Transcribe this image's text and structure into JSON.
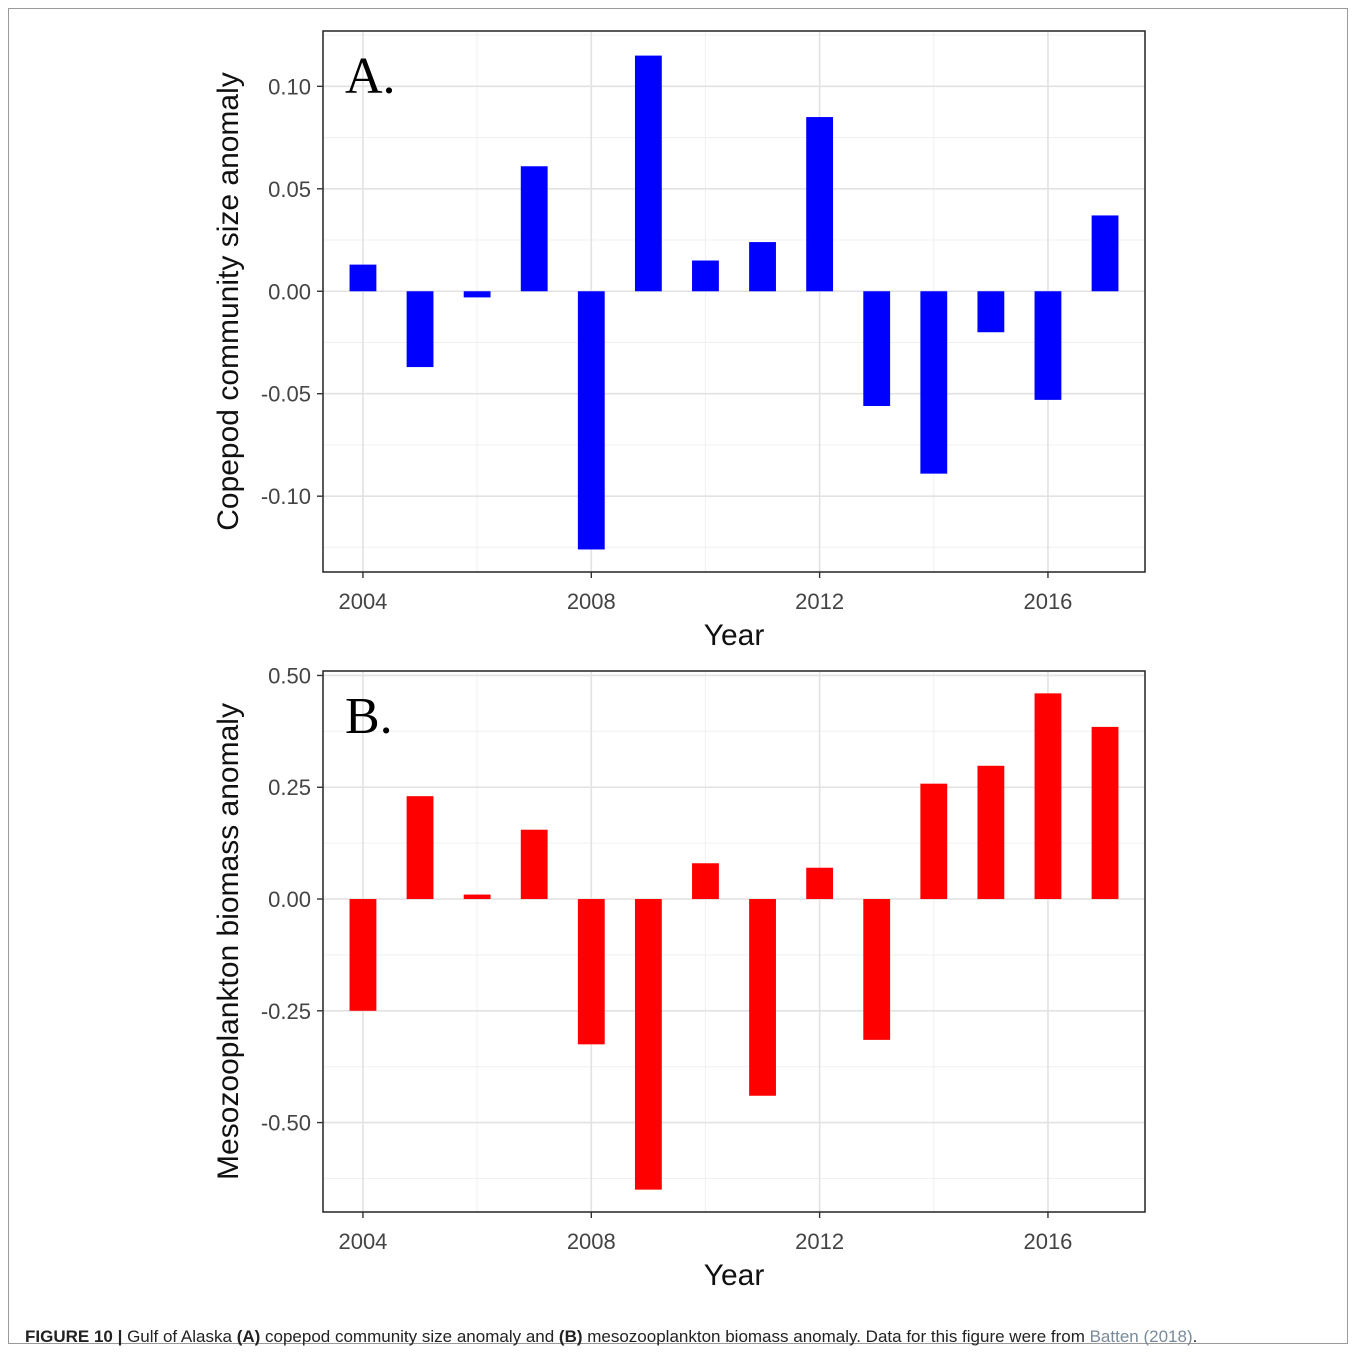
{
  "chart_data": [
    {
      "type": "bar",
      "panel_label": "A.",
      "title": "",
      "xlabel": "Year",
      "ylabel": "Copepod community size anomaly",
      "x": [
        2004,
        2005,
        2006,
        2007,
        2008,
        2009,
        2010,
        2011,
        2012,
        2013,
        2014,
        2015,
        2016,
        2017
      ],
      "values": [
        0.013,
        -0.037,
        -0.003,
        0.061,
        -0.126,
        0.115,
        0.015,
        0.024,
        0.085,
        -0.056,
        -0.089,
        -0.02,
        -0.053,
        0.037
      ],
      "xlim": [
        2003.3,
        2017.7
      ],
      "ylim": [
        -0.137,
        0.127
      ],
      "xticks": [
        2004,
        2008,
        2012,
        2016
      ],
      "xtick_labels": [
        "2004",
        "2008",
        "2012",
        "2016"
      ],
      "yticks": [
        0.1,
        0.05,
        0.0,
        -0.05,
        -0.1
      ],
      "ytick_labels": [
        "0.10",
        "0.05",
        "0.00",
        "-0.05",
        "-0.10"
      ],
      "color": "#0000ff",
      "grid": true
    },
    {
      "type": "bar",
      "panel_label": "B.",
      "title": "",
      "xlabel": "Year",
      "ylabel": "Mesozooplankton biomass anomaly",
      "x": [
        2004,
        2005,
        2006,
        2007,
        2008,
        2009,
        2010,
        2011,
        2012,
        2013,
        2014,
        2015,
        2016,
        2017
      ],
      "values": [
        -0.25,
        0.23,
        0.01,
        0.155,
        -0.325,
        -0.65,
        0.08,
        -0.44,
        0.07,
        -0.315,
        0.258,
        0.298,
        0.46,
        0.385
      ],
      "xlim": [
        2003.3,
        2017.7
      ],
      "ylim": [
        -0.7,
        0.51
      ],
      "xticks": [
        2004,
        2008,
        2012,
        2016
      ],
      "xtick_labels": [
        "2004",
        "2008",
        "2012",
        "2016"
      ],
      "yticks": [
        0.5,
        0.25,
        0.0,
        -0.25,
        -0.5
      ],
      "ytick_labels": [
        "0.50",
        "0.25",
        "0.00",
        "-0.25",
        "-0.50"
      ],
      "color": "#ff0000",
      "grid": true
    }
  ],
  "caption": {
    "figure_label": "FIGURE 10 |",
    "text_1": " Gulf of Alaska ",
    "bold_a": "(A)",
    "text_2": " copepod community size anomaly and ",
    "bold_b": "(B)",
    "text_3": " mesozooplankton biomass anomaly. Data for this figure were from ",
    "citation": "Batten (2018)",
    "text_4": "."
  }
}
